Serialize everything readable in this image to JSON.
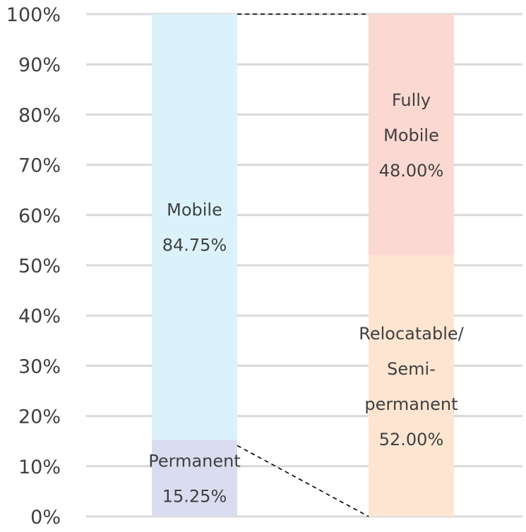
{
  "chart_data": {
    "type": "bar",
    "stacked": true,
    "variant": "bar-of-bar",
    "ylim": [
      0,
      100
    ],
    "yticks": [
      "0%",
      "10%",
      "20%",
      "30%",
      "40%",
      "50%",
      "60%",
      "70%",
      "80%",
      "90%",
      "100%"
    ],
    "grid": true,
    "legend": "none",
    "bars": [
      {
        "segments": [
          {
            "label": "Permanent",
            "value": 15.25,
            "value_label": "15.25%",
            "color": "#dadcf0"
          },
          {
            "label": "Mobile",
            "value": 84.75,
            "value_label": "84.75%",
            "color": "#dcf2fa"
          }
        ]
      },
      {
        "segments": [
          {
            "label": "Relocatable/ Semi- permanent",
            "lines": [
              "Relocatable/",
              "Semi-",
              "permanent"
            ],
            "value": 52.0,
            "value_label": "52.00%",
            "color": "#fde5d2"
          },
          {
            "label": "Fully Mobile",
            "lines": [
              "Fully",
              "Mobile"
            ],
            "value": 48.0,
            "value_label": "48.00%",
            "color": "#fbd8d2"
          }
        ]
      }
    ]
  }
}
